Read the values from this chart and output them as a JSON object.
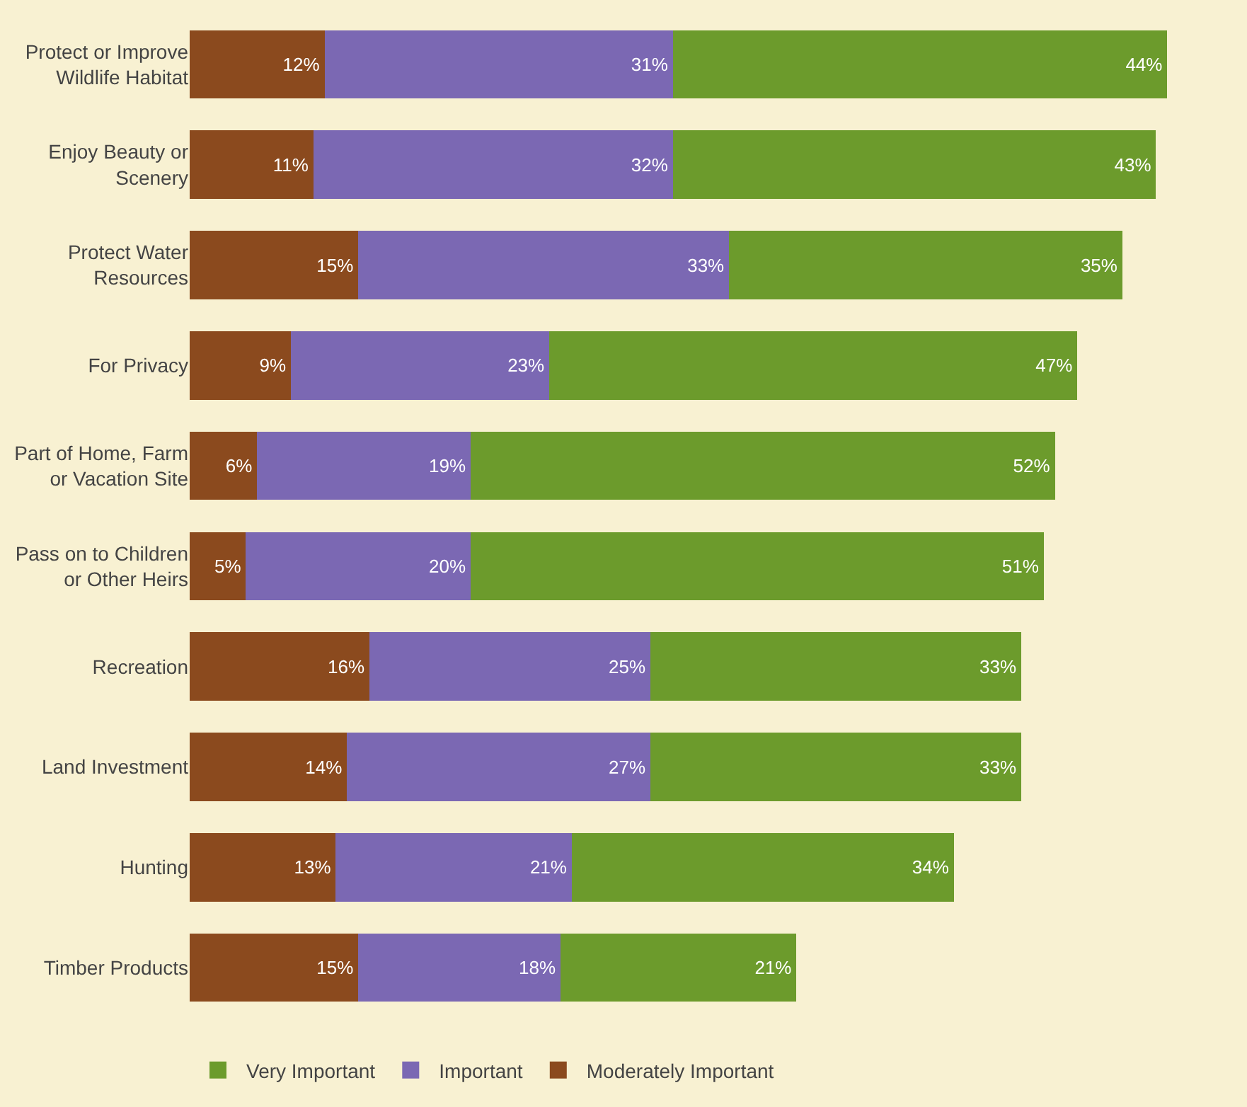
{
  "chart_data": {
    "type": "bar",
    "orientation": "horizontal",
    "stacked": true,
    "legend": "bottom",
    "categories": [
      "Protect or Improve Wildlife Habitat",
      "Enjoy Beauty or Scenery",
      "Protect Water Resources",
      "For Privacy",
      "Part of Home, Farm or Vacation Site",
      "Pass on to Children or Other Heirs",
      "Recreation",
      "Land Investment",
      "Hunting",
      "Timber Products"
    ],
    "series": [
      {
        "name": "Moderately Important",
        "color": "#8b4a1e",
        "values": [
          12,
          11,
          15,
          9,
          6,
          5,
          16,
          14,
          13,
          15
        ],
        "value_labels": [
          "12%",
          "11%",
          "15%",
          "9%",
          "6%",
          "5%",
          "16%",
          "14%",
          "13%",
          "15%"
        ]
      },
      {
        "name": "Important",
        "color": "#7b68b3",
        "values": [
          31,
          32,
          33,
          23,
          19,
          20,
          25,
          27,
          21,
          18
        ],
        "value_labels": [
          "31%",
          "32%",
          "33%",
          "23%",
          "19%",
          "20%",
          "25%",
          "27%",
          "21%",
          "18%"
        ]
      },
      {
        "name": "Very Important",
        "color": "#6c9b2c",
        "values": [
          44,
          43,
          35,
          47,
          52,
          51,
          33,
          33,
          34,
          21
        ],
        "value_labels": [
          "44%",
          "43%",
          "35%",
          "47%",
          "52%",
          "51%",
          "33%",
          "33%",
          "34%",
          "21%"
        ]
      }
    ]
  }
}
